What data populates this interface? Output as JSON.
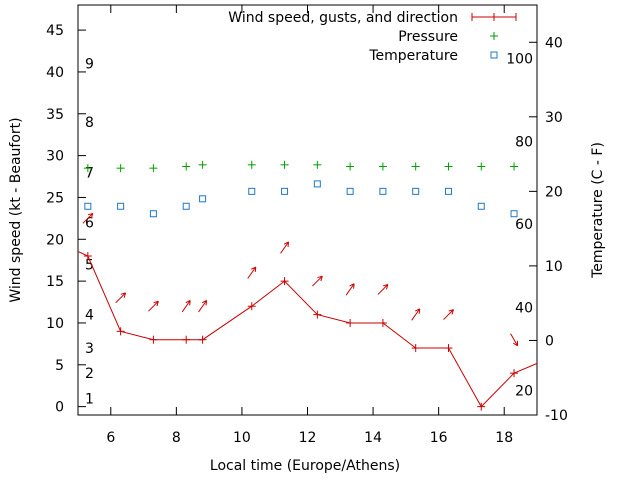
{
  "chart_data": {
    "type": "line",
    "x_label": "Local time (Europe/Athens)",
    "y_label": "Wind speed (kt - Beaufort)",
    "y2_label": "Temperature (C - F)",
    "x_range": [
      5,
      19
    ],
    "y_range": [
      -1,
      48
    ],
    "y2_range": [
      -10,
      45
    ],
    "x_ticks": [
      6,
      8,
      10,
      12,
      14,
      16,
      18
    ],
    "y_ticks": [
      0,
      5,
      10,
      15,
      20,
      25,
      30,
      35,
      40,
      45
    ],
    "y2_ticks": [
      -10,
      0,
      10,
      20,
      30,
      40
    ],
    "beaufort_labels": [
      {
        "label": "1",
        "y": 1.0
      },
      {
        "label": "2",
        "y": 4.0
      },
      {
        "label": "3",
        "y": 7.0
      },
      {
        "label": "4",
        "y": 11.0
      },
      {
        "label": "5",
        "y": 17.0
      },
      {
        "label": "6",
        "y": 22.0
      },
      {
        "label": "7",
        "y": 28.0
      },
      {
        "label": "8",
        "y": 34.0
      },
      {
        "label": "9",
        "y": 41.0
      }
    ],
    "fahrenheit_labels": [
      {
        "label": "20",
        "c": -6.7
      },
      {
        "label": "40",
        "c": 4.4
      },
      {
        "label": "60",
        "c": 15.6
      },
      {
        "label": "80",
        "c": 26.7
      },
      {
        "label": "100",
        "c": 37.8
      }
    ],
    "legend": [
      {
        "name": "Wind speed, gusts, and direction",
        "color": "#cc0000",
        "marker": "line-plus"
      },
      {
        "name": "Pressure",
        "color": "#00a000",
        "marker": "plus"
      },
      {
        "name": "Temperature",
        "color": "#1f78c8",
        "marker": "square"
      }
    ],
    "series": [
      {
        "name": "Wind speed, gusts, and direction",
        "color": "#cc0000",
        "x": [
          4.2,
          5.3,
          6.3,
          7.3,
          8.3,
          8.8,
          10.3,
          11.3,
          12.3,
          13.3,
          14.3,
          15.3,
          16.3,
          17.3,
          18.3,
          19.5
        ],
        "y": [
          20,
          18,
          9,
          8,
          8,
          8,
          12,
          15,
          11,
          10,
          10,
          7,
          7,
          0,
          4,
          6
        ],
        "markers": [
          false,
          true,
          true,
          true,
          true,
          true,
          true,
          true,
          true,
          true,
          true,
          true,
          true,
          true,
          true,
          false
        ]
      },
      {
        "name": "Pressure",
        "color": "#00a000",
        "x": [
          5.3,
          6.3,
          7.3,
          8.3,
          8.8,
          10.3,
          11.3,
          12.3,
          13.3,
          14.3,
          15.3,
          16.3,
          17.3,
          18.3
        ],
        "y": [
          28.5,
          28.5,
          28.5,
          28.7,
          28.9,
          28.9,
          28.9,
          28.9,
          28.7,
          28.7,
          28.7,
          28.7,
          28.7,
          28.7
        ]
      },
      {
        "name": "Temperature",
        "color": "#1f78c8",
        "x": [
          5.3,
          6.3,
          7.3,
          8.3,
          8.8,
          10.3,
          11.3,
          12.3,
          13.3,
          14.3,
          15.3,
          16.3,
          17.3,
          18.3
        ],
        "y2": [
          18,
          18,
          17,
          18,
          19,
          20,
          20,
          21,
          20,
          20,
          20,
          20,
          18,
          17
        ]
      }
    ],
    "gust_arrows": [
      {
        "x": 5.3,
        "y": 22.5,
        "dir": 225
      },
      {
        "x": 6.3,
        "y": 13,
        "dir": 225
      },
      {
        "x": 7.3,
        "y": 12,
        "dir": 225
      },
      {
        "x": 8.3,
        "y": 12,
        "dir": 215
      },
      {
        "x": 8.8,
        "y": 12,
        "dir": 215
      },
      {
        "x": 10.3,
        "y": 16,
        "dir": 215
      },
      {
        "x": 11.3,
        "y": 19,
        "dir": 215
      },
      {
        "x": 12.3,
        "y": 15,
        "dir": 225
      },
      {
        "x": 13.3,
        "y": 14,
        "dir": 215
      },
      {
        "x": 14.3,
        "y": 14,
        "dir": 225
      },
      {
        "x": 15.3,
        "y": 11,
        "dir": 215
      },
      {
        "x": 16.3,
        "y": 11,
        "dir": 225
      },
      {
        "x": 18.3,
        "y": 8,
        "dir": 330
      }
    ]
  }
}
